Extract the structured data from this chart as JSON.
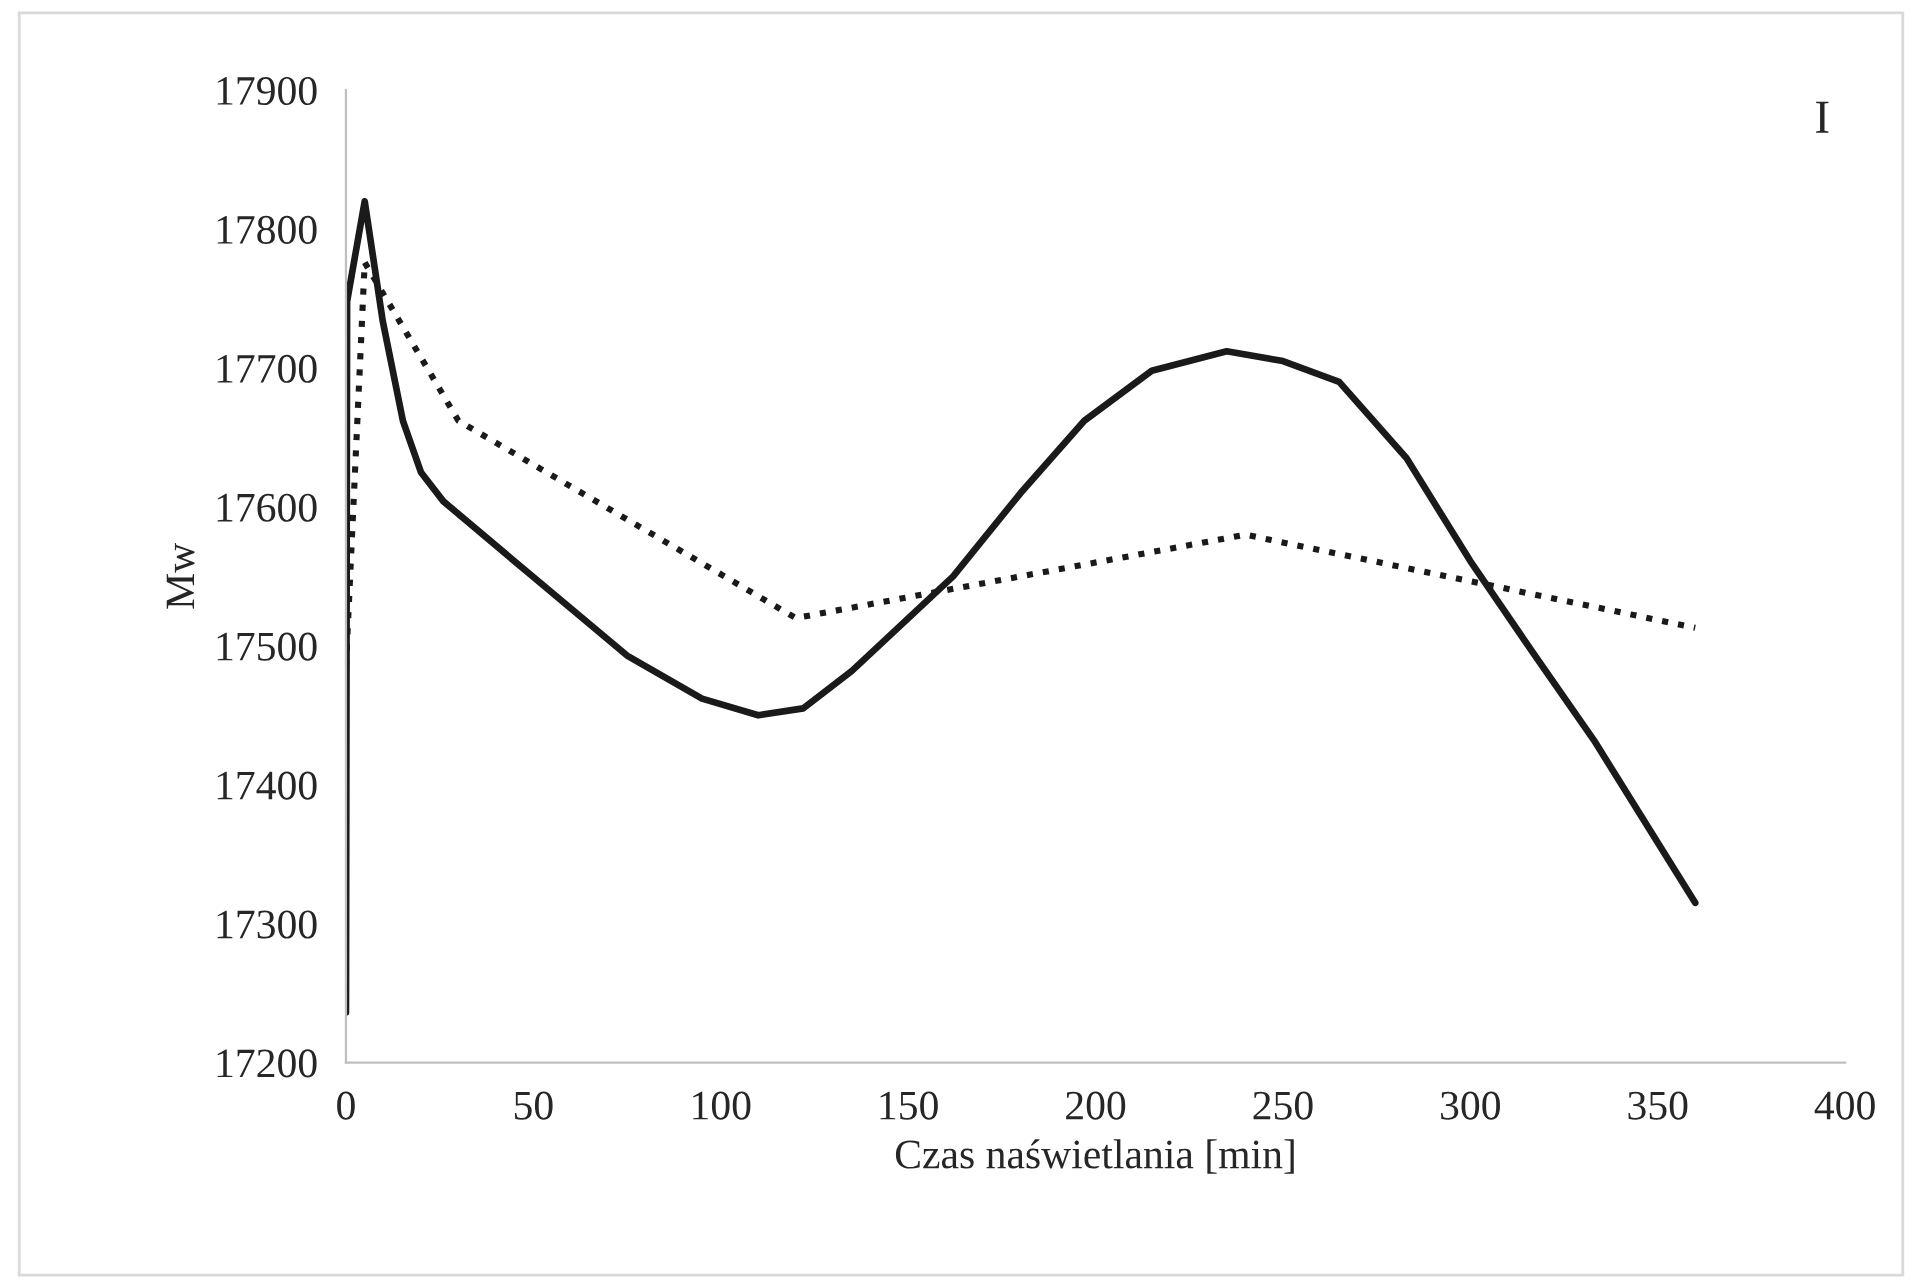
{
  "chart_data": {
    "type": "line",
    "xlabel": "Czas naświetlania [min]",
    "ylabel": "Mw",
    "annotations": [
      "I"
    ],
    "xlim": [
      0,
      400
    ],
    "xticks": [
      0,
      50,
      100,
      150,
      200,
      250,
      300,
      350,
      400
    ],
    "ylim": [
      17200,
      17900
    ],
    "yticks": [
      17200,
      17300,
      17400,
      17500,
      17600,
      17700,
      17800,
      17900
    ],
    "grid": false,
    "marker": "none",
    "series": [
      {
        "color": "#1a1a1a",
        "line_style": "solid",
        "x": [
          0,
          0.3,
          5,
          9.8,
          15.2,
          20,
          26,
          48,
          75,
          95,
          110,
          122,
          135,
          162,
          180,
          197,
          215,
          235,
          250,
          265,
          283,
          300,
          318,
          333,
          360
        ],
        "values": [
          17236,
          17748,
          17820,
          17734,
          17662,
          17625,
          17604,
          17554,
          17493,
          17462,
          17450,
          17455,
          17482,
          17550,
          17610,
          17662,
          17698,
          17712,
          17705,
          17690,
          17635,
          17561,
          17490,
          17432,
          17315
        ]
      },
      {
        "color": "#1a1a1a",
        "line_style": "dotted",
        "x": [
          0,
          5,
          30,
          120,
          240,
          360
        ],
        "values": [
          17485,
          17776,
          17662,
          17520,
          17580,
          17513
        ]
      }
    ]
  }
}
